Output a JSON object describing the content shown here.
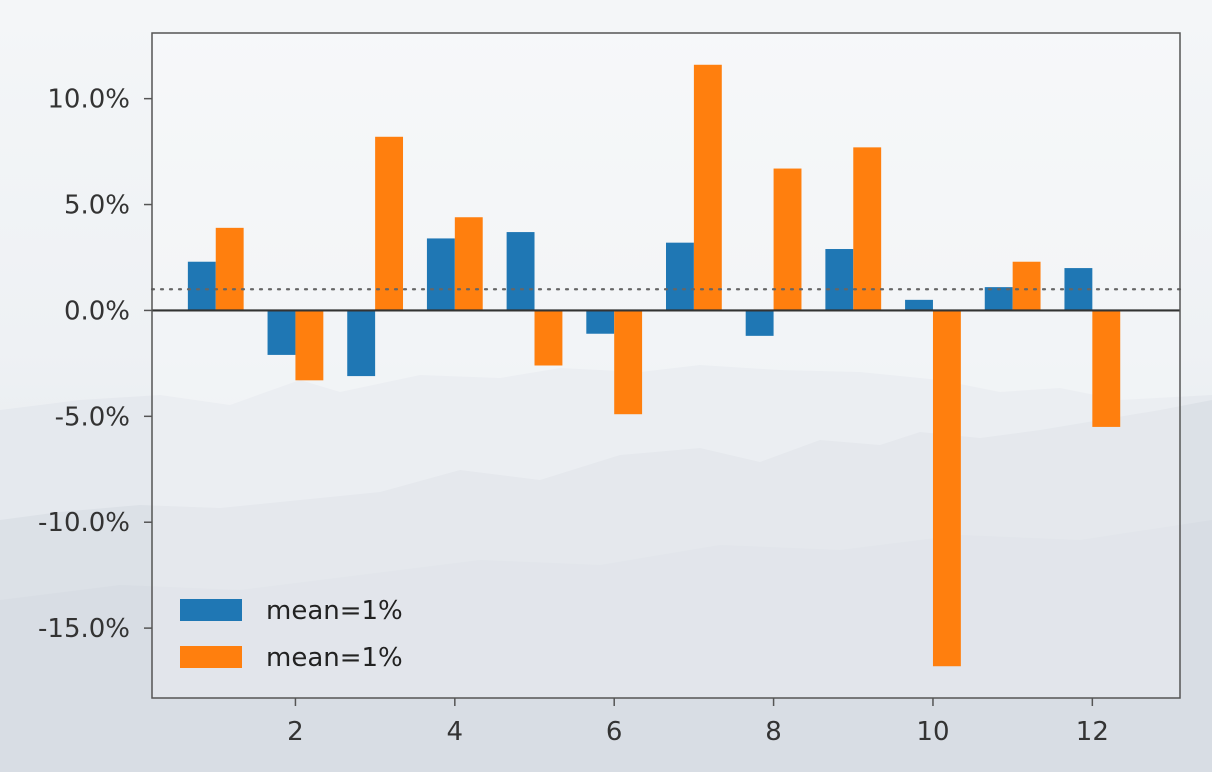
{
  "chart_data": {
    "type": "bar",
    "x": [
      1,
      2,
      3,
      4,
      5,
      6,
      7,
      8,
      9,
      10,
      11,
      12
    ],
    "series": [
      {
        "name": "mean=1%",
        "color": "#1f77b4",
        "values": [
          2.3,
          -2.1,
          -3.1,
          3.4,
          3.7,
          -1.1,
          3.2,
          -1.2,
          2.9,
          0.5,
          1.1,
          2.0
        ]
      },
      {
        "name": "mean=1%",
        "color": "#ff7f0e",
        "values": [
          3.9,
          -3.3,
          8.2,
          4.4,
          -2.6,
          -4.9,
          11.6,
          6.7,
          7.7,
          -16.8,
          2.3,
          -5.5
        ]
      }
    ],
    "xlim": [
      0.2,
      13.1
    ],
    "ylim": [
      -18.3,
      13.1
    ],
    "xticks": [
      2,
      4,
      6,
      8,
      10,
      12
    ],
    "xtick_labels": [
      "2",
      "4",
      "6",
      "8",
      "10",
      "12"
    ],
    "yticks": [
      10,
      5,
      0,
      -5,
      -10,
      -15
    ],
    "ytick_labels": [
      "10.0%",
      "5.0%",
      "0.0%",
      "-5.0%",
      "-10.0%",
      "-15.0%"
    ],
    "reference_line": 1.0,
    "zero_line": 0,
    "legend_position": "lower-left",
    "grid": false
  }
}
